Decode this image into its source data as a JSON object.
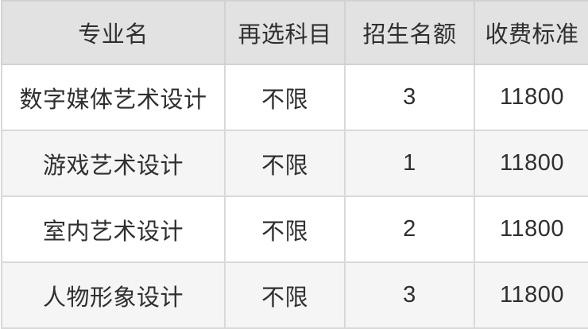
{
  "chart_data": {
    "type": "table",
    "columns": [
      "专业名",
      "再选科目",
      "招生名额",
      "收费标准"
    ],
    "rows": [
      [
        "数字媒体艺术设计",
        "不限",
        "3",
        "11800"
      ],
      [
        "游戏艺术设计",
        "不限",
        "1",
        "11800"
      ],
      [
        "室内艺术设计",
        "不限",
        "2",
        "11800"
      ],
      [
        "人物形象设计",
        "不限",
        "3",
        "11800"
      ]
    ],
    "layout_hints": {
      "header_position": "top",
      "cell_alignment": "center",
      "zebra_striping": true
    }
  },
  "colors": {
    "header_bg": "#e2e2e2",
    "stripe_row_bg": "#f5f5f5",
    "plain_row_bg": "#ffffff",
    "grid_border": "#d9d9d9",
    "text": "#2f2f2f"
  }
}
